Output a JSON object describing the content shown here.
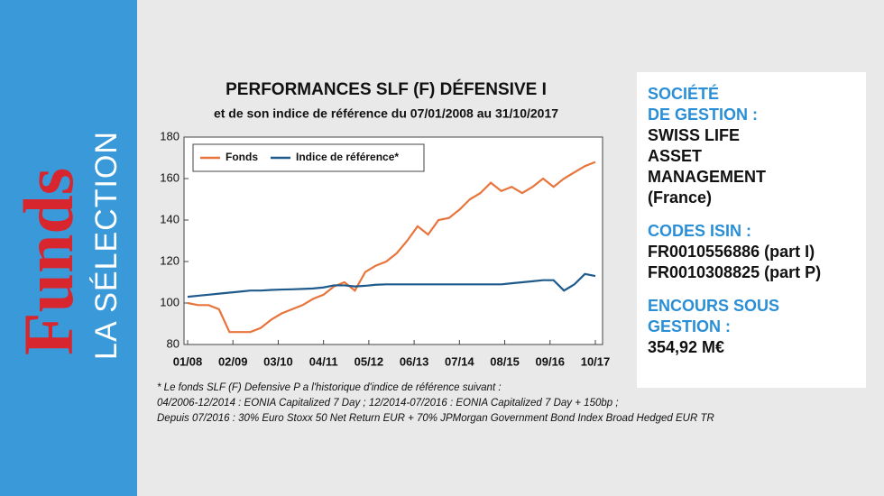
{
  "sidebar": {
    "brand": "Funds",
    "subtitle": "LA SÉLECTION"
  },
  "chart_data": {
    "type": "line",
    "title": "PERFORMANCES SLF (F) DÉFENSIVE I",
    "subtitle": "et de son indice de référence du 07/01/2008 au 31/10/2017",
    "x": [
      "01/08",
      "04/08",
      "07/08",
      "10/08",
      "01/09",
      "04/09",
      "07/09",
      "10/09",
      "01/10",
      "04/10",
      "07/10",
      "10/10",
      "01/11",
      "04/11",
      "07/11",
      "10/11",
      "01/12",
      "04/12",
      "07/12",
      "10/12",
      "01/13",
      "04/13",
      "07/13",
      "10/13",
      "01/14",
      "04/14",
      "07/14",
      "10/14",
      "01/15",
      "04/15",
      "07/15",
      "10/15",
      "01/16",
      "04/16",
      "07/16",
      "10/16",
      "01/17",
      "04/17",
      "07/17",
      "10/17"
    ],
    "series": [
      {
        "name": "Fonds",
        "color": "#e8743b",
        "values": [
          100,
          99,
          99,
          97,
          86,
          86,
          86,
          88,
          92,
          95,
          97,
          99,
          102,
          104,
          108,
          110,
          106,
          115,
          118,
          120,
          124,
          130,
          137,
          133,
          140,
          141,
          145,
          150,
          153,
          158,
          154,
          156,
          153,
          156,
          160,
          156,
          160,
          163,
          166,
          168
        ]
      },
      {
        "name": "Indice de référence*",
        "color": "#1f5a8c",
        "values": [
          103,
          103.5,
          104,
          104.5,
          105,
          105.5,
          106,
          106,
          106.3,
          106.5,
          106.6,
          106.8,
          107,
          107.5,
          108.5,
          108.5,
          108,
          108.3,
          108.8,
          109,
          109,
          109,
          109,
          109,
          109,
          109,
          109,
          109,
          109,
          109,
          109,
          109.5,
          110,
          110.5,
          111,
          111,
          106,
          109,
          114,
          113
        ]
      }
    ],
    "xlim": [
      "01/08",
      "10/17"
    ],
    "xticks": [
      "01/08",
      "02/09",
      "03/10",
      "04/11",
      "05/12",
      "06/13",
      "07/14",
      "08/15",
      "09/16",
      "10/17"
    ],
    "ylim": [
      80,
      180
    ],
    "yticks": [
      80,
      100,
      120,
      140,
      160,
      180
    ],
    "grid": false,
    "legend": "top-left",
    "footnote": [
      "* Le fonds SLF (F) Defensive P a l'historique d'indice de référence suivant :",
      "04/2006-12/2014 : EONIA Capitalized 7 Day ; 12/2014-07/2016 : EONIA Capitalized 7 Day + 150bp ;",
      "Depuis 07/2016 : 30% Euro Stoxx 50 Net Return EUR + 70% JPMorgan Government Bond Index Broad Hedged EUR TR"
    ]
  },
  "info": {
    "management_heading": [
      "SOCIÉTÉ",
      "DE GESTION :"
    ],
    "management": [
      "SWISS LIFE",
      "ASSET",
      "MANAGEMENT",
      "(France)"
    ],
    "isin_heading": [
      "CODES ISIN :"
    ],
    "isin": [
      "FR0010556886 (part I)",
      "FR0010308825 (part P)"
    ],
    "aum_heading": [
      "ENCOURS SOUS",
      "GESTION :"
    ],
    "aum": [
      "354,92 M€"
    ]
  }
}
